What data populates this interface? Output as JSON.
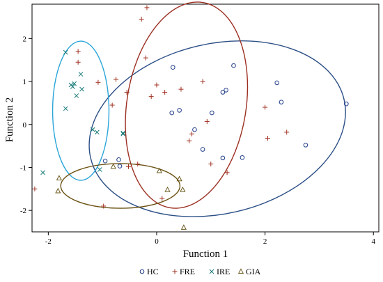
{
  "chart_data": {
    "type": "scatter",
    "xlabel": "Function 1",
    "ylabel": "Function 2",
    "xlim": [
      -2.3,
      4.1
    ],
    "ylim": [
      -2.5,
      2.8
    ],
    "x_ticks": [
      "-2",
      "0",
      "2",
      "4"
    ],
    "y_ticks": [
      "-2",
      "-1",
      "0",
      "1",
      "2"
    ],
    "grid": false,
    "legend_placement": "bottom",
    "series": [
      {
        "name": "HC",
        "marker": "circle",
        "color": "#1f3c88",
        "points": [
          [
            0.3,
            1.33
          ],
          [
            0.28,
            0.27
          ],
          [
            0.42,
            0.33
          ],
          [
            0.7,
            -0.12
          ],
          [
            0.85,
            -0.58
          ],
          [
            1.02,
            0.27
          ],
          [
            1.22,
            -0.78
          ],
          [
            1.22,
            0.75
          ],
          [
            1.28,
            0.8
          ],
          [
            1.42,
            1.37
          ],
          [
            1.58,
            -0.77
          ],
          [
            2.22,
            0.97
          ],
          [
            2.3,
            0.52
          ],
          [
            2.75,
            -0.48
          ],
          [
            3.5,
            0.48
          ],
          [
            -0.95,
            -0.85
          ],
          [
            -0.7,
            -0.82
          ],
          [
            -0.68,
            -0.97
          ]
        ]
      },
      {
        "name": "FRE",
        "marker": "plus",
        "color": "#a03020",
        "points": [
          [
            -0.28,
            2.45
          ],
          [
            -0.18,
            2.72
          ],
          [
            -0.2,
            1.55
          ],
          [
            -0.75,
            1.05
          ],
          [
            -0.55,
            0.75
          ],
          [
            -0.1,
            0.65
          ],
          [
            0.0,
            0.92
          ],
          [
            0.15,
            0.75
          ],
          [
            0.45,
            0.82
          ],
          [
            0.6,
            -0.38
          ],
          [
            0.65,
            -0.22
          ],
          [
            0.85,
            1.0
          ],
          [
            1.0,
            -0.92
          ],
          [
            1.3,
            -1.12
          ],
          [
            0.93,
            0.07
          ],
          [
            2.0,
            0.4
          ],
          [
            2.05,
            -0.32
          ],
          [
            2.4,
            -0.18
          ],
          [
            -0.52,
            -0.98
          ],
          [
            -0.35,
            -0.92
          ],
          [
            0.1,
            -1.72
          ],
          [
            -0.98,
            -1.9
          ],
          [
            -2.25,
            -1.5
          ],
          [
            -0.82,
            0.45
          ],
          [
            -1.08,
            0.98
          ],
          [
            -1.45,
            1.7
          ],
          [
            -1.45,
            1.45
          ]
        ]
      },
      {
        "name": "IRE",
        "marker": "x",
        "color": "#1a7a7a",
        "points": [
          [
            -1.68,
            1.68
          ],
          [
            -1.58,
            0.92
          ],
          [
            -1.52,
            0.95
          ],
          [
            -1.55,
            0.88
          ],
          [
            -1.48,
            0.67
          ],
          [
            -1.4,
            1.17
          ],
          [
            -1.38,
            0.82
          ],
          [
            -1.68,
            0.37
          ],
          [
            -1.18,
            -0.12
          ],
          [
            -1.1,
            -0.18
          ],
          [
            -1.05,
            -1.05
          ],
          [
            -2.1,
            -1.12
          ],
          [
            -0.62,
            -0.22
          ],
          [
            -0.62,
            -0.2
          ]
        ]
      },
      {
        "name": "GIA",
        "marker": "triangle",
        "color": "#6b5a1e",
        "points": [
          [
            -1.8,
            -1.25
          ],
          [
            -1.82,
            -1.55
          ],
          [
            -0.8,
            -0.98
          ],
          [
            0.05,
            -1.08
          ],
          [
            0.2,
            -1.52
          ],
          [
            0.42,
            -1.27
          ],
          [
            0.48,
            -1.52
          ],
          [
            0.5,
            -2.4
          ]
        ]
      }
    ],
    "ellipses": [
      {
        "group": "HC",
        "color": "#2c4f86",
        "cx": 1.12,
        "cy": -0.1,
        "rx": 2.4,
        "ry": 1.98,
        "rotate_deg": -13
      },
      {
        "group": "FRE",
        "color": "#9c2f22",
        "cx": 0.55,
        "cy": 0.45,
        "rx": 1.1,
        "ry": 2.42,
        "rotate_deg": 9
      },
      {
        "group": "IRE",
        "color": "#2aa5d8",
        "cx": -1.4,
        "cy": 0.32,
        "rx": 0.52,
        "ry": 1.62,
        "rotate_deg": 0
      },
      {
        "group": "GIA",
        "color": "#6b5213",
        "cx": -0.67,
        "cy": -1.43,
        "rx": 1.1,
        "ry": 0.52,
        "rotate_deg": 0
      }
    ]
  }
}
